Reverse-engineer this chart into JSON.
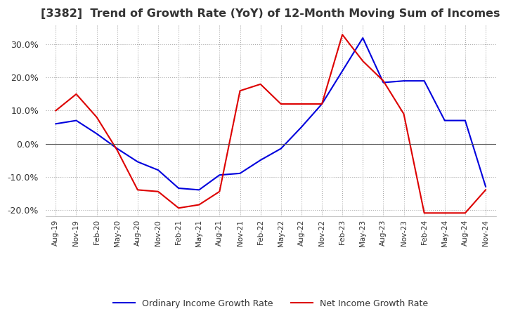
{
  "title": "[3382]  Trend of Growth Rate (YoY) of 12-Month Moving Sum of Incomes",
  "title_fontsize": 11.5,
  "ylim": [
    -22,
    36
  ],
  "yticks": [
    -20,
    -10,
    0,
    10,
    20,
    30
  ],
  "background_color": "#ffffff",
  "grid_color": "#aaaaaa",
  "grid_style": "dotted",
  "ordinary_color": "#0000dd",
  "net_color": "#dd0000",
  "legend_ordinary": "Ordinary Income Growth Rate",
  "legend_net": "Net Income Growth Rate",
  "x_labels": [
    "Aug-19",
    "Nov-19",
    "Feb-20",
    "May-20",
    "Aug-20",
    "Nov-20",
    "Feb-21",
    "May-21",
    "Aug-21",
    "Nov-21",
    "Feb-22",
    "May-22",
    "Aug-22",
    "Nov-22",
    "Feb-23",
    "May-23",
    "Aug-23",
    "Nov-23",
    "Feb-24",
    "May-24",
    "Aug-24",
    "Nov-24"
  ],
  "ordinary_income": [
    6.0,
    7.0,
    3.0,
    -1.5,
    -5.5,
    -8.0,
    -13.5,
    -14.0,
    -9.5,
    -9.0,
    -5.0,
    -1.5,
    5.0,
    12.0,
    22.0,
    32.0,
    18.5,
    19.0,
    19.0,
    7.0,
    7.0,
    -13.0
  ],
  "net_income": [
    10.0,
    15.0,
    8.0,
    -2.0,
    -14.0,
    -14.5,
    -19.5,
    -18.5,
    -14.5,
    16.0,
    18.0,
    12.0,
    12.0,
    12.0,
    33.0,
    25.0,
    19.0,
    9.0,
    -21.0,
    -21.0,
    -21.0,
    -14.0
  ]
}
